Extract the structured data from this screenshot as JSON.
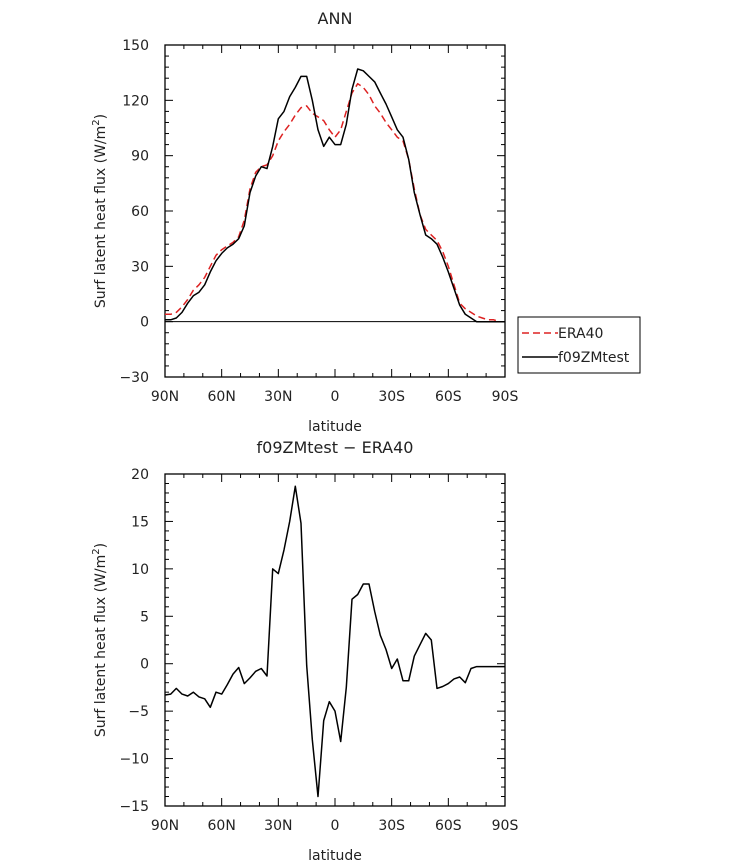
{
  "chart_data": [
    {
      "type": "line",
      "title": "ANN",
      "xlabel": "latitude",
      "ylabel_main": "Surf latent heat flux (W/m",
      "ylabel_sup": "2",
      "ylabel_close": ")",
      "xlim": [
        -90,
        90
      ],
      "ylim": [
        -30,
        150
      ],
      "x_tick_values": [
        -90,
        -60,
        -30,
        0,
        30,
        60,
        90
      ],
      "x_tick_labels": [
        "90N",
        "60N",
        "30N",
        "0",
        "30S",
        "60S",
        "90S"
      ],
      "y_tick_values": [
        -30,
        0,
        30,
        60,
        90,
        120,
        150
      ],
      "y_tick_labels": [
        "−30",
        "0",
        "30",
        "60",
        "90",
        "120",
        "150"
      ],
      "legend_position": "right",
      "series": [
        {
          "name": "ERA40",
          "color": "#dd2222",
          "dash": "dashed",
          "x": [
            -90,
            -87,
            -84,
            -81,
            -78,
            -75,
            -72,
            -69,
            -66,
            -63,
            -60,
            -57,
            -54,
            -51,
            -48,
            -45,
            -42,
            -39,
            -36,
            -33,
            -30,
            -27,
            -24,
            -21,
            -18,
            -15,
            -12,
            -9,
            -6,
            -3,
            0,
            3,
            6,
            9,
            12,
            15,
            18,
            21,
            24,
            27,
            30,
            33,
            36,
            39,
            42,
            45,
            48,
            51,
            54,
            57,
            60,
            63,
            66,
            69,
            72,
            75,
            78,
            81,
            84,
            87,
            90
          ],
          "values": [
            4,
            4,
            5,
            8,
            12,
            17,
            20,
            24,
            30,
            36,
            39,
            41,
            43,
            46,
            55,
            72,
            81,
            84,
            85,
            90,
            98,
            103,
            107,
            112,
            116,
            117,
            113,
            111,
            109,
            104,
            100,
            104,
            114,
            124,
            129,
            127,
            123,
            117,
            113,
            108,
            104,
            100,
            98,
            88,
            72,
            58,
            50,
            47,
            44,
            38,
            30,
            20,
            10,
            7,
            5,
            3,
            2,
            1,
            1,
            0,
            0
          ]
        },
        {
          "name": "f09ZMtest",
          "color": "#000000",
          "dash": "solid",
          "x": [
            -90,
            -87,
            -84,
            -81,
            -78,
            -75,
            -72,
            -69,
            -66,
            -63,
            -60,
            -57,
            -54,
            -51,
            -48,
            -45,
            -42,
            -39,
            -36,
            -33,
            -30,
            -27,
            -24,
            -21,
            -18,
            -15,
            -12,
            -9,
            -6,
            -3,
            0,
            3,
            6,
            9,
            12,
            15,
            18,
            21,
            24,
            27,
            30,
            33,
            36,
            39,
            42,
            45,
            48,
            51,
            54,
            57,
            60,
            63,
            66,
            69,
            72,
            75,
            78,
            81,
            84,
            87,
            90
          ],
          "values": [
            1,
            1,
            2,
            5,
            10,
            14,
            16,
            20,
            27,
            33,
            37,
            40,
            42,
            45,
            52,
            70,
            79,
            84,
            83,
            95,
            110,
            114,
            122,
            127,
            133,
            133,
            120,
            104,
            95,
            100,
            96,
            96,
            107,
            126,
            137,
            136,
            133,
            130,
            124,
            118,
            111,
            104,
            100,
            88,
            70,
            58,
            47,
            45,
            42,
            35,
            27,
            18,
            9,
            4,
            2,
            0,
            0,
            0,
            0,
            0,
            0
          ]
        }
      ]
    },
    {
      "type": "line",
      "title": "f09ZMtest − ERA40",
      "xlabel": "latitude",
      "ylabel_main": "Surf latent heat flux (W/m",
      "ylabel_sup": "2",
      "ylabel_close": ")",
      "xlim": [
        -90,
        90
      ],
      "ylim": [
        -15,
        20
      ],
      "x_tick_values": [
        -90,
        -60,
        -30,
        0,
        30,
        60,
        90
      ],
      "x_tick_labels": [
        "90N",
        "60N",
        "30N",
        "0",
        "30S",
        "60S",
        "90S"
      ],
      "y_tick_values": [
        -15,
        -10,
        -5,
        0,
        5,
        10,
        15,
        20
      ],
      "y_tick_labels": [
        "−15",
        "−10",
        "−5",
        "0",
        "5",
        "10",
        "15",
        "20"
      ],
      "series": [
        {
          "color": "#000000",
          "dash": "solid",
          "x": [
            -90,
            -87,
            -84,
            -81,
            -78,
            -75,
            -72,
            -69,
            -66,
            -63,
            -60,
            -57,
            -54,
            -51,
            -48,
            -45,
            -42,
            -39,
            -36,
            -33,
            -30,
            -27,
            -24,
            -21,
            -18,
            -15,
            -12,
            -9,
            -6,
            -3,
            0,
            3,
            6,
            9,
            12,
            15,
            18,
            21,
            24,
            27,
            30,
            33,
            36,
            39,
            42,
            45,
            48,
            51,
            54,
            57,
            60,
            63,
            66,
            69,
            72,
            75,
            78,
            81,
            84,
            87,
            90
          ],
          "values": [
            -3.3,
            -3.2,
            -2.6,
            -3.2,
            -3.4,
            -3.0,
            -3.5,
            -3.7,
            -4.6,
            -3.0,
            -3.2,
            -2.2,
            -1.1,
            -0.4,
            -2.1,
            -1.5,
            -0.8,
            -0.5,
            -1.3,
            10.0,
            9.5,
            12.0,
            15.0,
            18.7,
            14.8,
            -0.2,
            -8.0,
            -14.0,
            -6.0,
            -4.0,
            -5.0,
            -8.2,
            -2.5,
            6.8,
            7.3,
            8.4,
            8.4,
            5.5,
            3.0,
            1.5,
            -0.5,
            0.5,
            -1.8,
            -1.8,
            0.8,
            2.0,
            3.2,
            2.5,
            -2.6,
            -2.4,
            -2.1,
            -1.6,
            -1.4,
            -2.0,
            -0.5,
            -0.3,
            -0.3,
            -0.3,
            -0.3,
            -0.3,
            -0.3
          ]
        }
      ]
    }
  ]
}
